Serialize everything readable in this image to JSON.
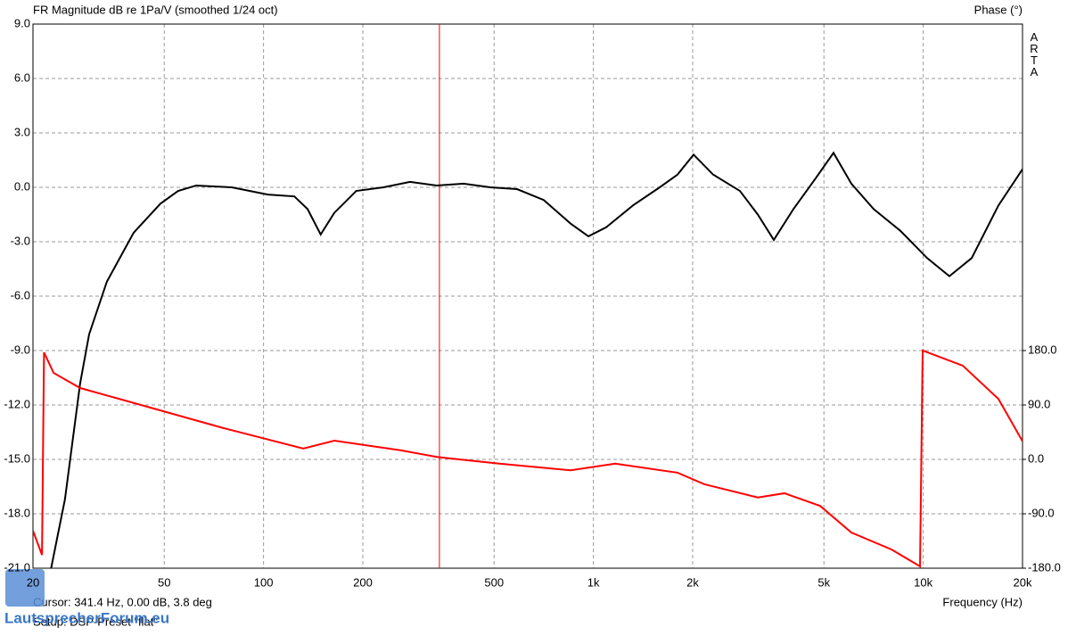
{
  "chart_data": {
    "type": "line",
    "title": "FR Magnitude dB re 1Pa/V (smoothed 1/24 oct)",
    "y2_title": "Phase (°)",
    "brand": "ARTA",
    "x_label": "Frequency (Hz)",
    "cursor": {
      "label": "Cursor: 341.4 Hz, 0.00 dB, 3.8 deg",
      "x": 341.4,
      "color": "#ff0000"
    },
    "footer": "Setup: DSP-Preset \"flat\"",
    "watermark": "LautsprecherForum.eu",
    "xscale": "log",
    "grid": true,
    "xlim": [
      20,
      20000
    ],
    "xticks": [
      20,
      50,
      100,
      200,
      500,
      {
        "value": 1000,
        "label": "1k"
      },
      {
        "value": 2000,
        "label": "2k"
      },
      {
        "value": 5000,
        "label": "5k"
      },
      {
        "value": 10000,
        "label": "10k"
      },
      {
        "value": 20000,
        "label": "20k"
      }
    ],
    "ylim": [
      -21,
      9
    ],
    "yticks": [
      {
        "value": 9,
        "label": "9.0"
      },
      {
        "value": 6,
        "label": "6.0"
      },
      {
        "value": 3,
        "label": "3.0"
      },
      {
        "value": 0,
        "label": "0.0"
      },
      {
        "value": -3,
        "label": "-3.0"
      },
      {
        "value": -6,
        "label": "-6.0"
      },
      {
        "value": -9,
        "label": "-9.0"
      },
      {
        "value": -12,
        "label": "-12.0"
      },
      {
        "value": -15,
        "label": "-15.0"
      },
      {
        "value": -18,
        "label": "-18.0"
      },
      {
        "value": -21,
        "label": "-21.0"
      }
    ],
    "y2lim": [
      -180,
      720
    ],
    "y2ticks": [
      {
        "value": 180,
        "label": "180.0"
      },
      {
        "value": 90,
        "label": "90.0"
      },
      {
        "value": 0,
        "label": "0.0"
      },
      {
        "value": -90,
        "label": "-90.0"
      },
      {
        "value": -180,
        "label": "-180.0"
      }
    ],
    "series": [
      {
        "name": "Magnitude",
        "color": "#000000",
        "x": [
          22.7,
          25.0,
          27.8,
          29.6,
          33.5,
          40.4,
          48.7,
          55.1,
          62.5,
          80.1,
          103,
          124,
          136,
          149,
          164,
          191,
          231,
          278,
          335,
          404,
          487,
          587,
          707,
          853,
          966,
          1094,
          1318,
          1589,
          1799,
          2013,
          2308,
          2782,
          3151,
          3524,
          4041,
          4721,
          5346,
          6055,
          7077,
          8529,
          10275,
          12005,
          14027,
          16906,
          20000
        ],
        "values": [
          -21.0,
          -17.2,
          -10.8,
          -8.1,
          -5.2,
          -2.5,
          -0.9,
          -0.2,
          0.1,
          0.0,
          -0.4,
          -0.5,
          -1.2,
          -2.6,
          -1.4,
          -0.2,
          0.0,
          0.3,
          0.1,
          0.2,
          0.0,
          -0.1,
          -0.7,
          -2.0,
          -2.7,
          -2.2,
          -1.0,
          0.0,
          0.7,
          1.8,
          0.7,
          -0.2,
          -1.5,
          -2.9,
          -1.2,
          0.5,
          1.9,
          0.2,
          -1.2,
          -2.4,
          -3.9,
          -4.9,
          -3.9,
          -1.0,
          1.0
        ]
      },
      {
        "name": "Phase",
        "color": "#ff0000",
        "axis": "y2",
        "x": [
          20,
          21.3,
          21.6,
          23.1,
          27.8,
          48.7,
          75.3,
          132,
          164,
          261,
          335,
          518,
          853,
          1164,
          1799,
          2168,
          3151,
          3796,
          4870,
          6055,
          8012,
          9780,
          9961,
          13182,
          16906,
          20000
        ],
        "values": [
          -118,
          -158,
          177,
          143,
          118,
          81,
          52,
          18,
          31,
          15,
          4,
          -7,
          -18,
          -7,
          -22,
          -41,
          -63,
          -56,
          -77,
          -121,
          -149,
          -177,
          180,
          155,
          100,
          30
        ]
      }
    ]
  }
}
